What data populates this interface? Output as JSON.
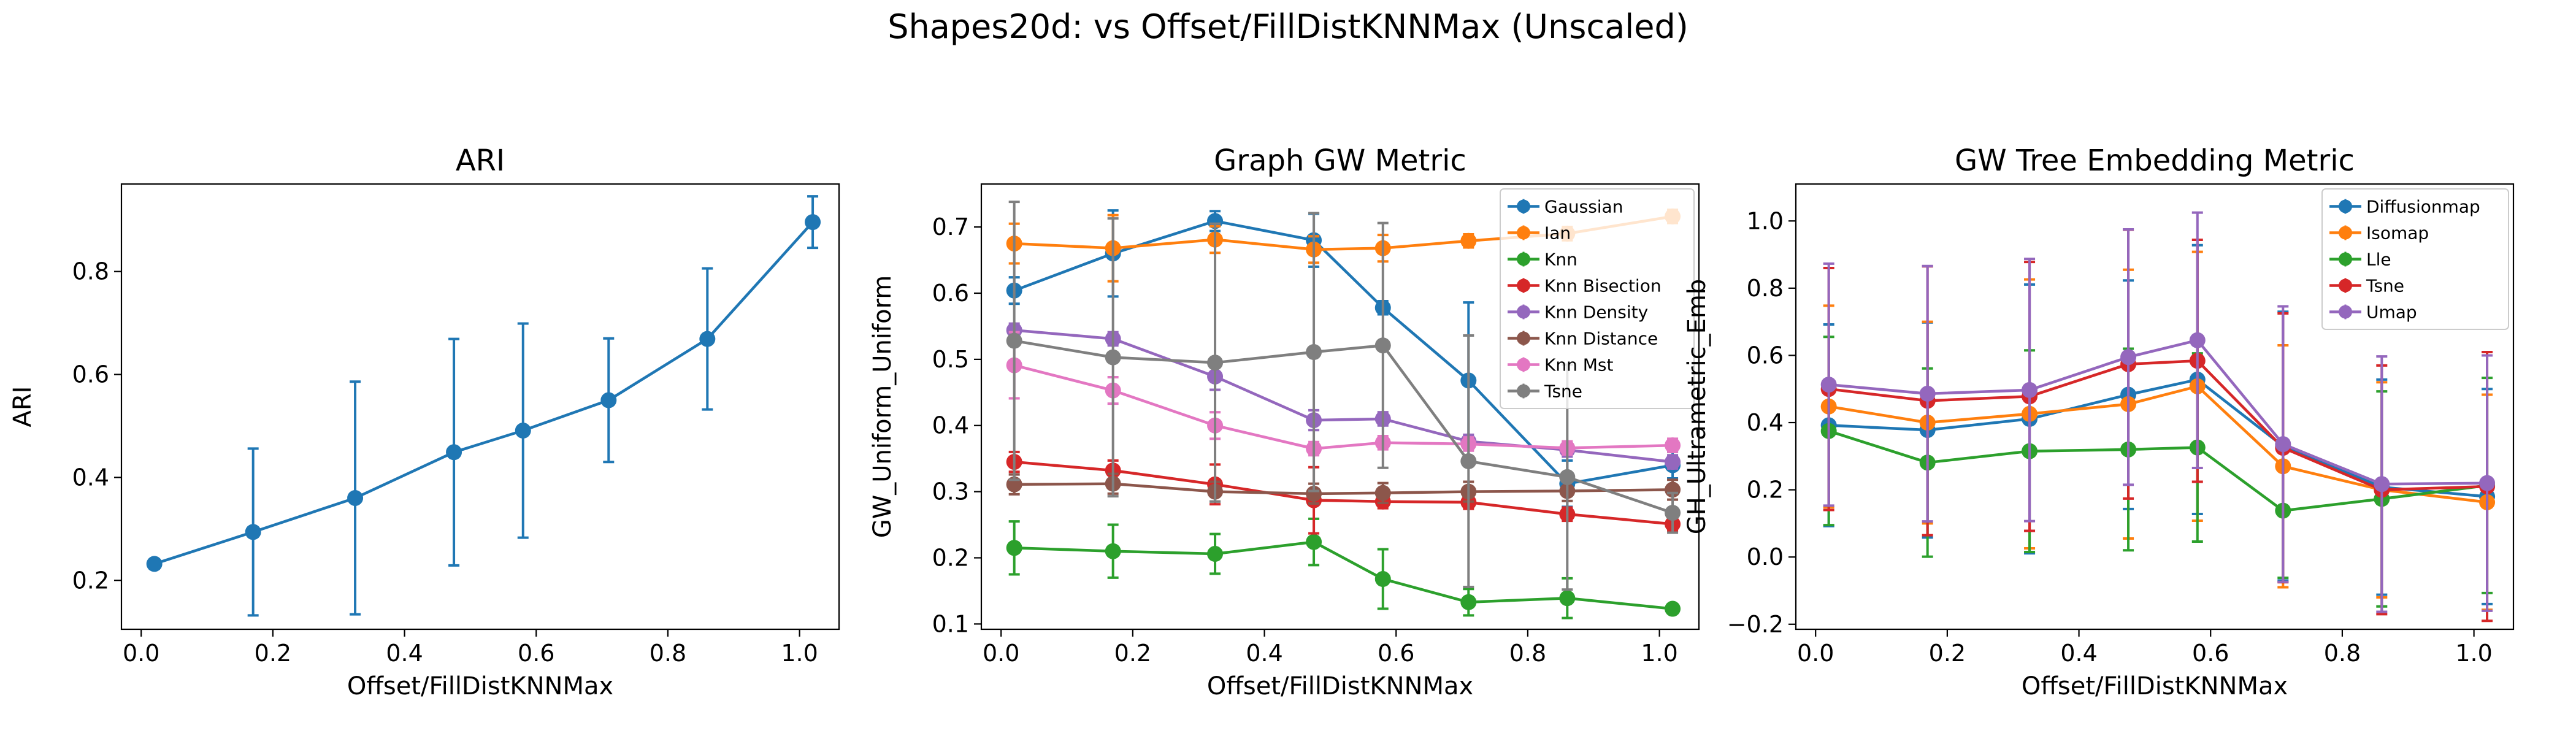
{
  "figure": {
    "suptitle": "Shapes20d: vs Offset/FillDistKNNMax (Unscaled)"
  },
  "chart_data": [
    {
      "type": "line",
      "title": "ARI",
      "xlabel": "Offset/FillDistKNNMax",
      "ylabel": "ARI",
      "xlim": [
        -0.03,
        1.06
      ],
      "ylim": [
        0.105,
        0.97
      ],
      "xticks": [
        0.0,
        0.2,
        0.4,
        0.6,
        0.8,
        1.0
      ],
      "xtick_labels": [
        "0.0",
        "0.2",
        "0.4",
        "0.6",
        "0.8",
        "1.0"
      ],
      "yticks": [
        0.2,
        0.4,
        0.6,
        0.8
      ],
      "ytick_labels": [
        "0.2",
        "0.4",
        "0.6",
        "0.8"
      ],
      "error_bars": true,
      "legend": null,
      "x": [
        0.02,
        0.17,
        0.325,
        0.475,
        0.58,
        0.71,
        0.86,
        1.02
      ],
      "series": [
        {
          "color": "#1f77b4",
          "values": [
            0.232,
            0.294,
            0.36,
            0.449,
            0.491,
            0.55,
            0.669,
            0.896
          ],
          "errors": [
            0.0,
            0.162,
            0.226,
            0.22,
            0.208,
            0.12,
            0.137,
            0.05
          ]
        }
      ]
    },
    {
      "type": "line",
      "title": "Graph GW Metric",
      "xlabel": "Offset/FillDistKNNMax",
      "ylabel": "GW_Uniform_Uniform",
      "xlim": [
        -0.03,
        1.06
      ],
      "ylim": [
        0.092,
        0.765
      ],
      "xticks": [
        0.0,
        0.2,
        0.4,
        0.6,
        0.8,
        1.0
      ],
      "xtick_labels": [
        "0.0",
        "0.2",
        "0.4",
        "0.6",
        "0.8",
        "1.0"
      ],
      "yticks": [
        0.1,
        0.2,
        0.3,
        0.4,
        0.5,
        0.6,
        0.7
      ],
      "ytick_labels": [
        "0.1",
        "0.2",
        "0.3",
        "0.4",
        "0.5",
        "0.6",
        "0.7"
      ],
      "error_bars": true,
      "legend": "top-right",
      "x": [
        0.02,
        0.17,
        0.325,
        0.475,
        0.58,
        0.71,
        0.86,
        1.02
      ],
      "series": [
        {
          "name": "Gaussian",
          "color": "#1f77b4",
          "values": [
            0.604,
            0.66,
            0.709,
            0.68,
            0.578,
            0.468,
            0.312,
            0.34
          ],
          "errors": [
            0.02,
            0.065,
            0.015,
            0.04,
            0.01,
            0.118,
            0.035,
            0.02
          ]
        },
        {
          "name": "Ian",
          "color": "#ff7f0e",
          "values": [
            0.675,
            0.668,
            0.681,
            0.666,
            0.668,
            0.679,
            0.69,
            0.716
          ],
          "errors": [
            0.03,
            0.05,
            0.02,
            0.02,
            0.02,
            0.01,
            0.01,
            0.01
          ]
        },
        {
          "name": "Knn",
          "color": "#2ca02c",
          "values": [
            0.215,
            0.21,
            0.206,
            0.224,
            0.168,
            0.133,
            0.139,
            0.123
          ],
          "errors": [
            0.04,
            0.04,
            0.03,
            0.035,
            0.045,
            0.02,
            0.03,
            0.005
          ]
        },
        {
          "name": "Knn Bisection",
          "color": "#d62728",
          "values": [
            0.345,
            0.332,
            0.311,
            0.287,
            0.285,
            0.284,
            0.266,
            0.251
          ],
          "errors": [
            0.015,
            0.015,
            0.03,
            0.05,
            0.01,
            0.01,
            0.01,
            0.01
          ]
        },
        {
          "name": "Knn Density",
          "color": "#9467bd",
          "values": [
            0.544,
            0.531,
            0.474,
            0.408,
            0.41,
            0.376,
            0.363,
            0.345
          ],
          "errors": [
            0.01,
            0.01,
            0.02,
            0.015,
            0.01,
            0.01,
            0.01,
            0.01
          ]
        },
        {
          "name": "Knn Distance",
          "color": "#8c564b",
          "values": [
            0.311,
            0.312,
            0.3,
            0.297,
            0.298,
            0.3,
            0.301,
            0.303
          ],
          "errors": [
            0.015,
            0.015,
            0.015,
            0.015,
            0.015,
            0.015,
            0.015,
            0.015
          ]
        },
        {
          "name": "Knn Mst",
          "color": "#e377c2",
          "values": [
            0.491,
            0.453,
            0.4,
            0.365,
            0.374,
            0.372,
            0.366,
            0.37
          ],
          "errors": [
            0.05,
            0.02,
            0.02,
            0.01,
            0.01,
            0.01,
            0.01,
            0.01
          ]
        },
        {
          "name": "Tsne",
          "color": "#7f7f7f",
          "values": [
            0.528,
            0.503,
            0.495,
            0.511,
            0.521,
            0.346,
            0.322,
            0.268
          ],
          "errors": [
            0.21,
            0.21,
            0.21,
            0.21,
            0.185,
            0.19,
            0.17,
            0.03
          ]
        }
      ]
    },
    {
      "type": "line",
      "title": "GW Tree Embedding Metric",
      "xlabel": "Offset/FillDistKNNMax",
      "ylabel": "GH_Ultrametric_Emb",
      "xlim": [
        -0.03,
        1.06
      ],
      "ylim": [
        -0.215,
        1.11
      ],
      "xticks": [
        0.0,
        0.2,
        0.4,
        0.6,
        0.8,
        1.0
      ],
      "xtick_labels": [
        "0.0",
        "0.2",
        "0.4",
        "0.6",
        "0.8",
        "1.0"
      ],
      "yticks": [
        -0.2,
        0.0,
        0.2,
        0.4,
        0.6,
        0.8,
        1.0
      ],
      "ytick_labels": [
        "−0.2",
        "0.0",
        "0.2",
        "0.4",
        "0.6",
        "0.8",
        "1.0"
      ],
      "error_bars": true,
      "legend": "top-right",
      "x": [
        0.02,
        0.17,
        0.325,
        0.475,
        0.58,
        0.71,
        0.86,
        1.02
      ],
      "series": [
        {
          "name": "Diffusionmap",
          "color": "#1f77b4",
          "values": [
            0.392,
            0.378,
            0.411,
            0.483,
            0.528,
            0.33,
            0.208,
            0.18
          ],
          "errors": [
            0.3,
            0.32,
            0.4,
            0.34,
            0.4,
            0.4,
            0.32,
            0.32
          ]
        },
        {
          "name": "Isomap",
          "color": "#ff7f0e",
          "values": [
            0.448,
            0.4,
            0.426,
            0.455,
            0.508,
            0.27,
            0.2,
            0.163
          ],
          "errors": [
            0.3,
            0.3,
            0.4,
            0.4,
            0.4,
            0.36,
            0.32,
            0.32
          ]
        },
        {
          "name": "Lle",
          "color": "#2ca02c",
          "values": [
            0.375,
            0.281,
            0.315,
            0.32,
            0.326,
            0.138,
            0.173,
            0.213
          ],
          "errors": [
            0.28,
            0.28,
            0.3,
            0.3,
            0.28,
            0.2,
            0.32,
            0.32
          ]
        },
        {
          "name": "Tsne",
          "color": "#d62728",
          "values": [
            0.5,
            0.465,
            0.478,
            0.574,
            0.584,
            0.325,
            0.2,
            0.21
          ],
          "errors": [
            0.36,
            0.4,
            0.4,
            0.4,
            0.36,
            0.4,
            0.37,
            0.4
          ]
        },
        {
          "name": "Umap",
          "color": "#9467bd",
          "values": [
            0.513,
            0.486,
            0.497,
            0.595,
            0.645,
            0.336,
            0.217,
            0.22
          ],
          "errors": [
            0.36,
            0.38,
            0.39,
            0.38,
            0.38,
            0.41,
            0.38,
            0.38
          ]
        }
      ]
    }
  ]
}
